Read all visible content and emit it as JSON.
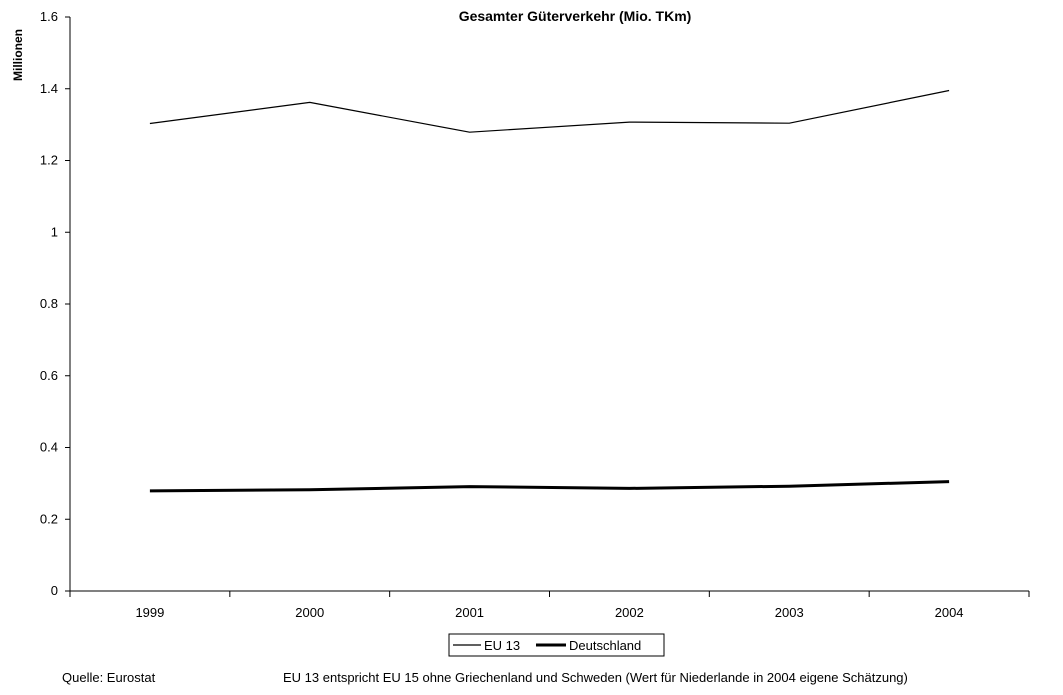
{
  "chart_data": {
    "type": "line",
    "title": "Gesamter Güterverkehr (Mio. TKm)",
    "ylabel": "Millionen",
    "xlabel": "",
    "categories": [
      "1999",
      "2000",
      "2001",
      "2002",
      "2003",
      "2004"
    ],
    "ylim": [
      0,
      1.6
    ],
    "yticks": [
      "0",
      "0.2",
      "0.4",
      "0.6",
      "0.8",
      "1",
      "1.2",
      "1.4",
      "1.6"
    ],
    "grid": false,
    "legend_position": "bottom",
    "series": [
      {
        "name": "EU 13",
        "values": [
          1.303,
          1.362,
          1.279,
          1.307,
          1.304,
          1.395
        ],
        "color": "#000000",
        "style": "thin"
      },
      {
        "name": "Deutschland",
        "values": [
          0.279,
          0.282,
          0.291,
          0.286,
          0.292,
          0.305
        ],
        "color": "#000000",
        "style": "thick"
      }
    ]
  },
  "footer": {
    "source": "Quelle: Eurostat",
    "note": "EU 13 entspricht EU 15 ohne Griechenland und Schweden (Wert für Niederlande in 2004 eigene Schätzung)"
  }
}
